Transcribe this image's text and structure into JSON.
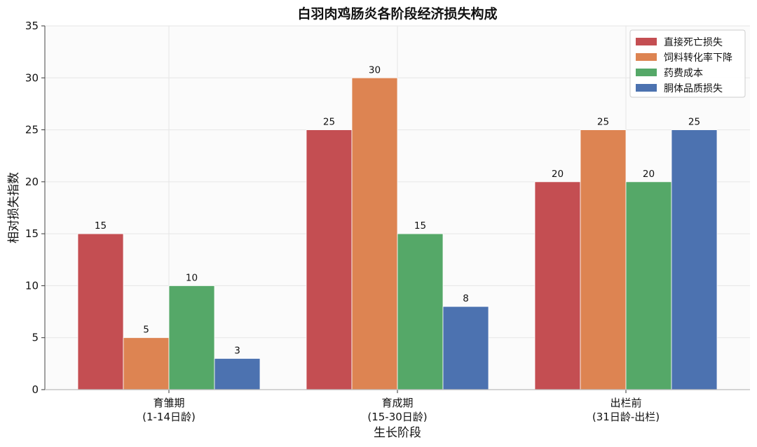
{
  "chart_data": {
    "type": "bar",
    "title": "白羽肉鸡肠炎各阶段经济损失构成",
    "xlabel": "生长阶段",
    "ylabel": "相对损失指数",
    "categories": [
      [
        "育雏期",
        "(1-14日龄)"
      ],
      [
        "育成期",
        "(15-30日龄)"
      ],
      [
        "出栏前",
        "(31日龄-出栏)"
      ]
    ],
    "series": [
      {
        "name": "直接死亡损失",
        "color": "#c44e52",
        "values": [
          15,
          25,
          20
        ]
      },
      {
        "name": "饲料转化率下降",
        "color": "#dd8452",
        "values": [
          5,
          30,
          25
        ]
      },
      {
        "name": "药费成本",
        "color": "#55a868",
        "values": [
          10,
          15,
          20
        ]
      },
      {
        "name": "胴体品质损失",
        "color": "#4c72b0",
        "values": [
          3,
          8,
          25
        ]
      }
    ],
    "ylim": [
      0,
      35
    ],
    "yticks": [
      0,
      5,
      10,
      15,
      20,
      25,
      30,
      35
    ],
    "grid": true,
    "legend_position": "top-right"
  }
}
